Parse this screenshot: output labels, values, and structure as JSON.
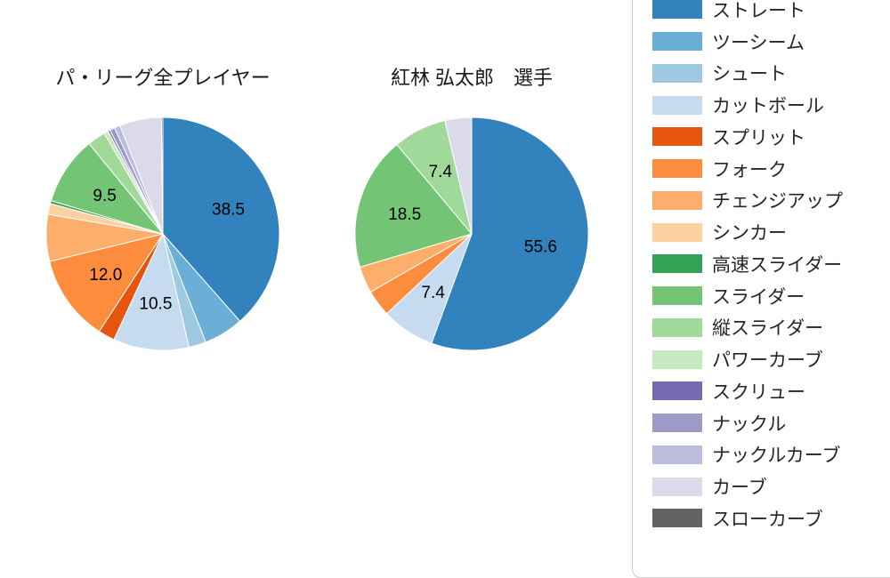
{
  "figure": {
    "background_color": "#ffffff",
    "legend_border_color": "#cccccc"
  },
  "legend": {
    "items": [
      {
        "label": "ストレート",
        "color": "#3182bd"
      },
      {
        "label": "ツーシーム",
        "color": "#6baed6"
      },
      {
        "label": "シュート",
        "color": "#9ecae1"
      },
      {
        "label": "カットボール",
        "color": "#c6dbef"
      },
      {
        "label": "スプリット",
        "color": "#e6550d"
      },
      {
        "label": "フォーク",
        "color": "#fd8d3c"
      },
      {
        "label": "チェンジアップ",
        "color": "#fdae6b"
      },
      {
        "label": "シンカー",
        "color": "#fdd0a2"
      },
      {
        "label": "高速スライダー",
        "color": "#31a354"
      },
      {
        "label": "スライダー",
        "color": "#74c476"
      },
      {
        "label": "縦スライダー",
        "color": "#a1d99b"
      },
      {
        "label": "パワーカーブ",
        "color": "#c7e9c0"
      },
      {
        "label": "スクリュー",
        "color": "#756bb1"
      },
      {
        "label": "ナックル",
        "color": "#9e9ac8"
      },
      {
        "label": "ナックルカーブ",
        "color": "#bcbddc"
      },
      {
        "label": "カーブ",
        "color": "#dadaeb"
      },
      {
        "label": "スローカーブ",
        "color": "#636363"
      }
    ]
  },
  "chart_data": [
    {
      "type": "pie",
      "title": "パ・リーグ全プレイヤー",
      "unit": "percent",
      "start_angle": "top",
      "direction": "clockwise",
      "label_distance_ratio": 0.6,
      "slices": [
        {
          "label": "ストレート",
          "value": 38.5,
          "color": "#3182bd",
          "show_label": true
        },
        {
          "label": "ツーシーム",
          "value": 5.5,
          "color": "#6baed6",
          "show_label": false
        },
        {
          "label": "シュート",
          "value": 2.4,
          "color": "#9ecae1",
          "show_label": false
        },
        {
          "label": "カットボール",
          "value": 10.5,
          "color": "#c6dbef",
          "show_label": true
        },
        {
          "label": "スプリット",
          "value": 2.3,
          "color": "#e6550d",
          "show_label": false
        },
        {
          "label": "フォーク",
          "value": 12.0,
          "color": "#fd8d3c",
          "show_label": true
        },
        {
          "label": "チェンジアップ",
          "value": 6.5,
          "color": "#fdae6b",
          "show_label": false
        },
        {
          "label": "シンカー",
          "value": 1.5,
          "color": "#fdd0a2",
          "show_label": false
        },
        {
          "label": "高速スライダー",
          "value": 0.4,
          "color": "#31a354",
          "show_label": false
        },
        {
          "label": "スライダー",
          "value": 9.5,
          "color": "#74c476",
          "show_label": true
        },
        {
          "label": "縦スライダー",
          "value": 2.5,
          "color": "#a1d99b",
          "show_label": false
        },
        {
          "label": "パワーカーブ",
          "value": 0.6,
          "color": "#c7e9c0",
          "show_label": false
        },
        {
          "label": "スクリュー",
          "value": 0.3,
          "color": "#756bb1",
          "show_label": false
        },
        {
          "label": "ナックル",
          "value": 0.7,
          "color": "#9e9ac8",
          "show_label": false
        },
        {
          "label": "ナックルカーブ",
          "value": 0.8,
          "color": "#bcbddc",
          "show_label": false
        },
        {
          "label": "カーブ",
          "value": 5.8,
          "color": "#dadaeb",
          "show_label": false
        },
        {
          "label": "スローカーブ",
          "value": 0.2,
          "color": "#636363",
          "show_label": false
        }
      ]
    },
    {
      "type": "pie",
      "title": "紅林 弘太郎　選手",
      "unit": "percent",
      "start_angle": "top",
      "direction": "clockwise",
      "label_distance_ratio": 0.6,
      "slices": [
        {
          "label": "ストレート",
          "value": 55.6,
          "color": "#3182bd",
          "show_label": true
        },
        {
          "label": "カットボール",
          "value": 7.4,
          "color": "#c6dbef",
          "show_label": true
        },
        {
          "label": "フォーク",
          "value": 3.7,
          "color": "#fd8d3c",
          "show_label": false
        },
        {
          "label": "チェンジアップ",
          "value": 3.7,
          "color": "#fdae6b",
          "show_label": false
        },
        {
          "label": "スライダー",
          "value": 18.5,
          "color": "#74c476",
          "show_label": true
        },
        {
          "label": "縦スライダー",
          "value": 7.4,
          "color": "#a1d99b",
          "show_label": true
        },
        {
          "label": "カーブ",
          "value": 3.7,
          "color": "#dadaeb",
          "show_label": false
        }
      ]
    }
  ]
}
